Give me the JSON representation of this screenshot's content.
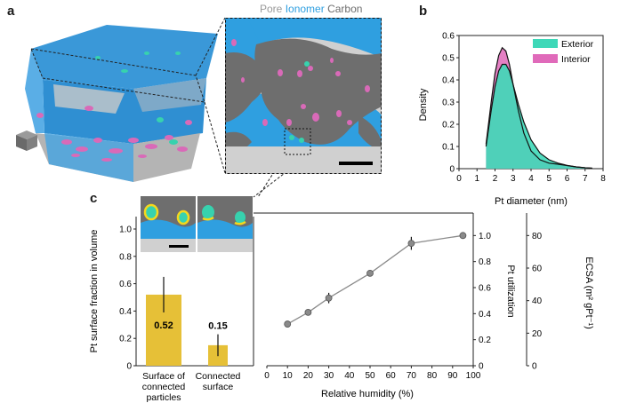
{
  "panels": {
    "a": "a",
    "b": "b",
    "c": "c"
  },
  "legend_a": {
    "pore": "Pore",
    "ionomer": "Ionomer",
    "carbon": "Carbon"
  },
  "colors": {
    "pore": "#c8c8c8",
    "ionomer": "#2f9fe0",
    "carbon": "#6e6e6e",
    "platinum_exterior": "#3ed8b8",
    "platinum_interior": "#e06aba",
    "bar": "#e6c037",
    "line": "#8a8a8a"
  },
  "chart_data": [
    {
      "type": "area",
      "panel": "b",
      "xlabel": "Pt diameter (nm)",
      "ylabel": "Density",
      "xlim": [
        0,
        8
      ],
      "ylim": [
        0,
        0.6
      ],
      "xticks": [
        0,
        1,
        2,
        3,
        4,
        5,
        6,
        7,
        8
      ],
      "yticks": [
        0,
        0.1,
        0.2,
        0.3,
        0.4,
        0.5,
        0.6
      ],
      "legend": [
        "Exterior",
        "Interior"
      ],
      "legend_position": "top-right",
      "x": [
        1.5,
        1.8,
        2.0,
        2.2,
        2.4,
        2.6,
        2.8,
        3.0,
        3.3,
        3.6,
        4.0,
        4.5,
        5.0,
        5.5,
        6.0,
        6.5,
        7.0,
        7.4
      ],
      "series": [
        {
          "name": "Exterior",
          "values": [
            0.1,
            0.27,
            0.37,
            0.44,
            0.47,
            0.47,
            0.44,
            0.38,
            0.29,
            0.21,
            0.13,
            0.07,
            0.04,
            0.025,
            0.015,
            0.008,
            0.004,
            0.002
          ]
        },
        {
          "name": "Interior",
          "values": [
            0.11,
            0.31,
            0.43,
            0.51,
            0.545,
            0.53,
            0.47,
            0.38,
            0.26,
            0.16,
            0.08,
            0.04,
            0.025,
            0.02,
            0.014,
            0.008,
            0.004,
            0.002
          ]
        }
      ]
    },
    {
      "type": "bar",
      "panel": "c",
      "ylabel": "Pt surface fraction in volume",
      "ylim": [
        0,
        1.0
      ],
      "yticks": [
        "0",
        "0.2",
        "0.4",
        "0.6",
        "0.8",
        "1.0"
      ],
      "categories": [
        [
          "Surface of",
          "connected",
          "particles"
        ],
        [
          "Connected",
          "surface"
        ]
      ],
      "values": [
        0.52,
        0.15
      ],
      "value_labels": [
        "0.52",
        "0.15"
      ],
      "error": [
        0.13,
        0.08
      ]
    },
    {
      "type": "line",
      "panel": "c",
      "xlabel": "Relative humidity (%)",
      "ylabel": "Pt utilization",
      "y2label": "ECSA (m² gPt⁻¹)",
      "xlim": [
        0,
        100
      ],
      "ylim": [
        0,
        1.05
      ],
      "y2lim": [
        0,
        84
      ],
      "xticks": [
        "0",
        "10",
        "20",
        "30",
        "40",
        "50",
        "60",
        "70",
        "80",
        "90",
        "100"
      ],
      "yticks": [
        "0",
        "0.2",
        "0.4",
        "0.6",
        "0.8",
        "1.0"
      ],
      "y2ticks": [
        "0",
        "20",
        "40",
        "60",
        "80"
      ],
      "x": [
        10,
        20,
        30,
        50,
        70,
        95
      ],
      "values": [
        0.32,
        0.41,
        0.52,
        0.71,
        0.94,
        1.0
      ],
      "error": [
        0.01,
        0.02,
        0.04,
        0.01,
        0.05,
        0.0
      ]
    }
  ]
}
